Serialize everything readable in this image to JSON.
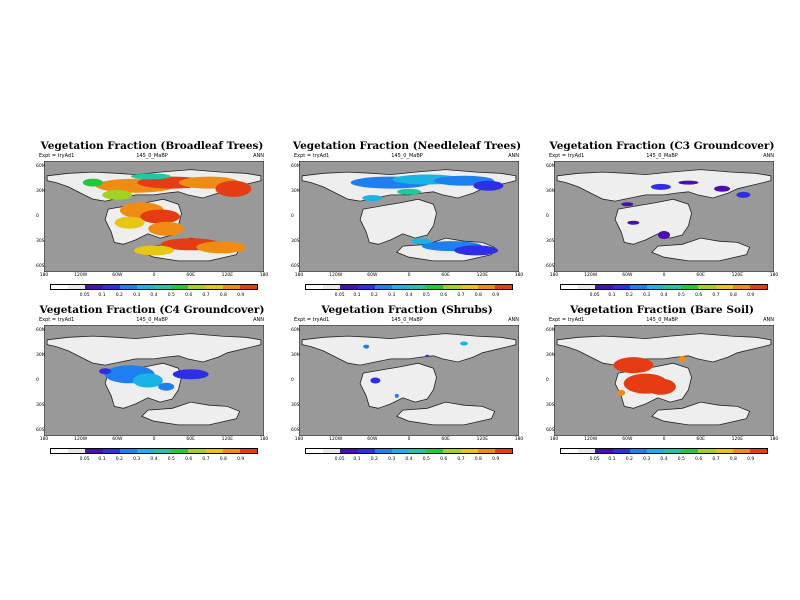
{
  "panels": [
    {
      "title": "Vegetation Fraction (Broadleaf Trees)",
      "left_label": "Expt = tryAd1",
      "center_label": "145_0_MaBP",
      "right_label": "ANN",
      "variant": "broadleaf"
    },
    {
      "title": "Vegetation Fraction (Needleleaf Trees)",
      "left_label": "Expt = tryAd1",
      "center_label": "145_0_MaBP",
      "right_label": "ANN",
      "variant": "needleleaf"
    },
    {
      "title": "Vegetation Fraction (C3 Groundcover)",
      "left_label": "Expt = tryAd1",
      "center_label": "145_0_MaBP",
      "right_label": "ANN",
      "variant": "c3"
    },
    {
      "title": "Vegetation Fraction (C4 Groundcover)",
      "left_label": "Expt = tryAd1",
      "center_label": "145_0_MaBP",
      "right_label": "ANN",
      "variant": "c4"
    },
    {
      "title": "Vegetation Fraction (Shrubs)",
      "left_label": "Expt = tryAd1",
      "center_label": "145_0_MaBP",
      "right_label": "ANN",
      "variant": "shrubs"
    },
    {
      "title": "Vegetation Fraction (Bare Soil)",
      "left_label": "Expt = tryAd1",
      "center_label": "145_0_MaBP",
      "right_label": "ANN",
      "variant": "bare"
    }
  ],
  "axes": {
    "lat_ticks": [
      "60N",
      "30N",
      "0",
      "30S",
      "60S"
    ],
    "lon_ticks": [
      "180",
      "120W",
      "60W",
      "0",
      "60E",
      "120E",
      "180"
    ]
  },
  "colorbar": {
    "levels": [
      "0.05",
      "0.1",
      "0.2",
      "0.3",
      "0.4",
      "0.5",
      "0.6",
      "0.7",
      "0.8",
      "0.9"
    ],
    "colors": [
      "#ffffff",
      "#e8e8e8",
      "#4b0fb0",
      "#2e2ee6",
      "#1e7ff0",
      "#19b4e6",
      "#1ec8a0",
      "#23c83c",
      "#a0d21e",
      "#e6c814",
      "#f08c14",
      "#e63c14"
    ]
  },
  "colors": {
    "ocean": "#999999",
    "land_empty": "#eeeeee",
    "coast": "#222222"
  }
}
